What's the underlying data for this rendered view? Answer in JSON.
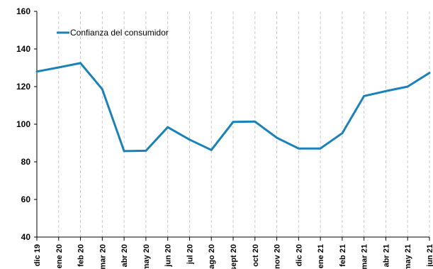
{
  "chart_data": {
    "type": "line",
    "title": "",
    "xlabel": "",
    "ylabel": "",
    "ylim": [
      40,
      160
    ],
    "yticks": [
      40,
      60,
      80,
      100,
      120,
      140,
      160
    ],
    "categories": [
      "dic 19",
      "ene 20",
      "feb 20",
      "mar 20",
      "abr 20",
      "may 20",
      "jun 20",
      "jul 20",
      "ago 20",
      "sept 20",
      "oct 20",
      "nov 20",
      "dic 20",
      "ene 21",
      "feb 21",
      "mar 21",
      "abr 21",
      "may 21",
      "jun 21"
    ],
    "series": [
      {
        "name": "Confianza del consumidor",
        "color": "#1a82b8",
        "values": [
          128,
          130.2,
          132.5,
          118.6,
          85.7,
          85.9,
          98.4,
          91.8,
          86.3,
          101.2,
          101.4,
          92.8,
          87.1,
          87.1,
          95.2,
          115,
          117.6,
          120,
          127.3
        ]
      }
    ],
    "grid": "vertical-dashed",
    "legend": "top-left"
  }
}
